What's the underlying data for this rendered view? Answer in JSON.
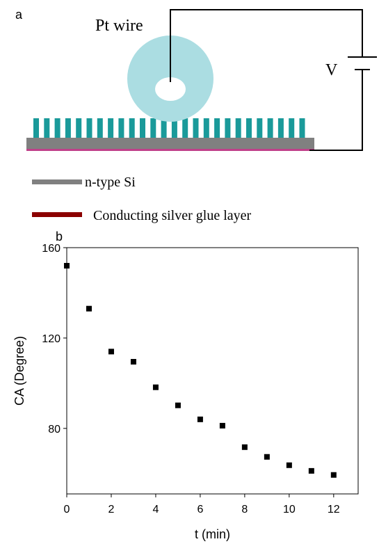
{
  "panel_a": {
    "label": "a",
    "pt_wire": "Pt wire",
    "voltage": "V",
    "legend": [
      {
        "label": "n-type Si",
        "color": "#808080"
      },
      {
        "label": "Conducting silver glue layer",
        "color": "#8b0000"
      }
    ]
  },
  "chart_data": {
    "type": "scatter",
    "panel_label": "b",
    "x_label": "t (min)",
    "y_label": "CA (Degree)",
    "x": [
      0,
      1,
      2,
      3,
      4,
      5,
      6,
      7,
      8,
      9,
      10,
      11,
      12
    ],
    "values": [
      152,
      133,
      114,
      109.5,
      98.2,
      90.2,
      84,
      81.2,
      71.7,
      67.4,
      63.7,
      61.2,
      59.4
    ],
    "color": "#000000",
    "xlim": [
      0,
      13.1
    ],
    "ylim": [
      51,
      160
    ],
    "xticks": [
      0,
      2,
      4,
      6,
      8,
      10,
      12
    ],
    "yticks": [
      80,
      120,
      160
    ]
  }
}
